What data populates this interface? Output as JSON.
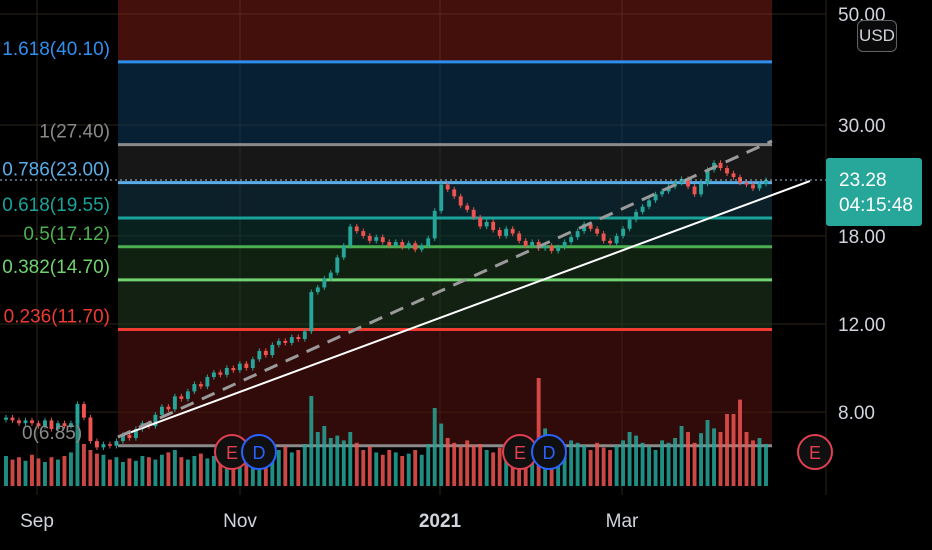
{
  "header": {
    "currency_label": "USD"
  },
  "price_tag": {
    "price": "23.28",
    "countdown": "04:15:48",
    "color": "#27a69a"
  },
  "chart_data": {
    "type": "candlestick",
    "price_axis": {
      "ticks": [
        50.0,
        30.0,
        18.0,
        12.0,
        8.0
      ],
      "labels": [
        "50.00",
        "30.00",
        "18.00",
        "12.00",
        "8.00"
      ],
      "scale": "log"
    },
    "time_axis": {
      "labels": [
        "Sep",
        "Nov",
        "2021",
        "Mar"
      ],
      "bold": [
        "2021"
      ]
    },
    "fib_levels": [
      {
        "label": "1.618(40.10)",
        "ratio": 1.618,
        "price": 40.1,
        "color": "#2f8fef"
      },
      {
        "label": "1(27.40)",
        "ratio": 1,
        "price": 27.4,
        "color": "#8a8a8a"
      },
      {
        "label": "0.786(23.00)",
        "ratio": 0.786,
        "price": 23.0,
        "color": "#5aaee8"
      },
      {
        "label": "0.618(19.55)",
        "ratio": 0.618,
        "price": 19.55,
        "color": "#1aa39a"
      },
      {
        "label": "0.5(17.12)",
        "ratio": 0.5,
        "price": 17.12,
        "color": "#4caf50"
      },
      {
        "label": "0.382(14.70)",
        "ratio": 0.382,
        "price": 14.7,
        "color": "#6fd36f"
      },
      {
        "label": "0.236(11.70)",
        "ratio": 0.236,
        "price": 11.7,
        "color": "#ef3b30"
      },
      {
        "label": "0(6.85)",
        "ratio": 0,
        "price": 6.85,
        "color": "#8a8a8a"
      }
    ],
    "events": [
      {
        "label": "E",
        "type": "earnings",
        "color": "#e04050"
      },
      {
        "label": "D",
        "type": "dividend",
        "color": "#2962ff"
      },
      {
        "label": "E",
        "type": "earnings",
        "color": "#e04050"
      },
      {
        "label": "D",
        "type": "dividend",
        "color": "#2962ff"
      },
      {
        "label": "E",
        "type": "earnings",
        "color": "#e04050"
      }
    ],
    "current_price": 23.28,
    "up_color": "#26a69a",
    "down_color": "#ef5350",
    "series": [
      {
        "name": "",
        "values": [
          7.8,
          7.7,
          7.6,
          7.7,
          7.6,
          7.5,
          7.7,
          7.4,
          7.6,
          7.5,
          7.6,
          8.3,
          7.8,
          7.0,
          6.8,
          6.9,
          6.85,
          7.0,
          7.2,
          7.1,
          7.4,
          7.6,
          7.5,
          7.9,
          8.2,
          8.1,
          8.6,
          8.5,
          8.8,
          9.1,
          9.0,
          9.4,
          9.6,
          9.5,
          9.8,
          9.7,
          10.0,
          9.8,
          10.2,
          10.6,
          10.4,
          10.9,
          11.1,
          11.0,
          11.3,
          11.2,
          11.6,
          13.9,
          14.2,
          14.8,
          15.2,
          16.3,
          17.2,
          18.8,
          18.4,
          18.0,
          17.6,
          17.9,
          17.5,
          17.2,
          17.5,
          17.1,
          17.4,
          16.9,
          17.2,
          17.8,
          20.2,
          22.8,
          22.3,
          21.6,
          20.7,
          20.3,
          19.6,
          18.8,
          19.2,
          18.5,
          18.0,
          18.6,
          18.2,
          17.6,
          17.2,
          17.5,
          17.0,
          17.2,
          16.8,
          17.1,
          17.5,
          17.9,
          18.4,
          19.0,
          18.6,
          18.2,
          17.6,
          17.4,
          18.0,
          18.6,
          19.4,
          20.1,
          20.6,
          21.2,
          21.8,
          22.1,
          22.6,
          23.0,
          23.4,
          22.6,
          21.8,
          22.9,
          24.4,
          25.2,
          24.6,
          24.0,
          23.6,
          23.0,
          22.8,
          22.4,
          22.9,
          23.28
        ]
      }
    ],
    "volume": [
      0.25,
      0.22,
      0.24,
      0.21,
      0.26,
      0.23,
      0.2,
      0.24,
      0.22,
      0.25,
      0.28,
      0.55,
      0.35,
      0.3,
      0.27,
      0.26,
      0.22,
      0.24,
      0.2,
      0.23,
      0.21,
      0.25,
      0.24,
      0.22,
      0.26,
      0.28,
      0.3,
      0.24,
      0.22,
      0.25,
      0.27,
      0.23,
      0.25,
      0.28,
      0.3,
      0.26,
      0.24,
      0.28,
      0.32,
      0.3,
      0.27,
      0.26,
      0.3,
      0.33,
      0.28,
      0.3,
      0.35,
      0.75,
      0.45,
      0.5,
      0.4,
      0.42,
      0.38,
      0.45,
      0.36,
      0.3,
      0.33,
      0.28,
      0.26,
      0.3,
      0.28,
      0.25,
      0.27,
      0.3,
      0.26,
      0.35,
      0.65,
      0.52,
      0.4,
      0.36,
      0.33,
      0.38,
      0.34,
      0.35,
      0.3,
      0.28,
      0.32,
      0.36,
      0.3,
      0.28,
      0.33,
      0.3,
      0.9,
      0.48,
      0.4,
      0.35,
      0.32,
      0.38,
      0.36,
      0.34,
      0.3,
      0.36,
      0.32,
      0.3,
      0.34,
      0.38,
      0.45,
      0.42,
      0.36,
      0.33,
      0.3,
      0.38,
      0.36,
      0.4,
      0.5,
      0.45,
      0.36,
      0.44,
      0.55,
      0.48,
      0.45,
      0.6,
      0.6,
      0.72,
      0.45,
      0.38,
      0.4,
      0.35
    ]
  }
}
